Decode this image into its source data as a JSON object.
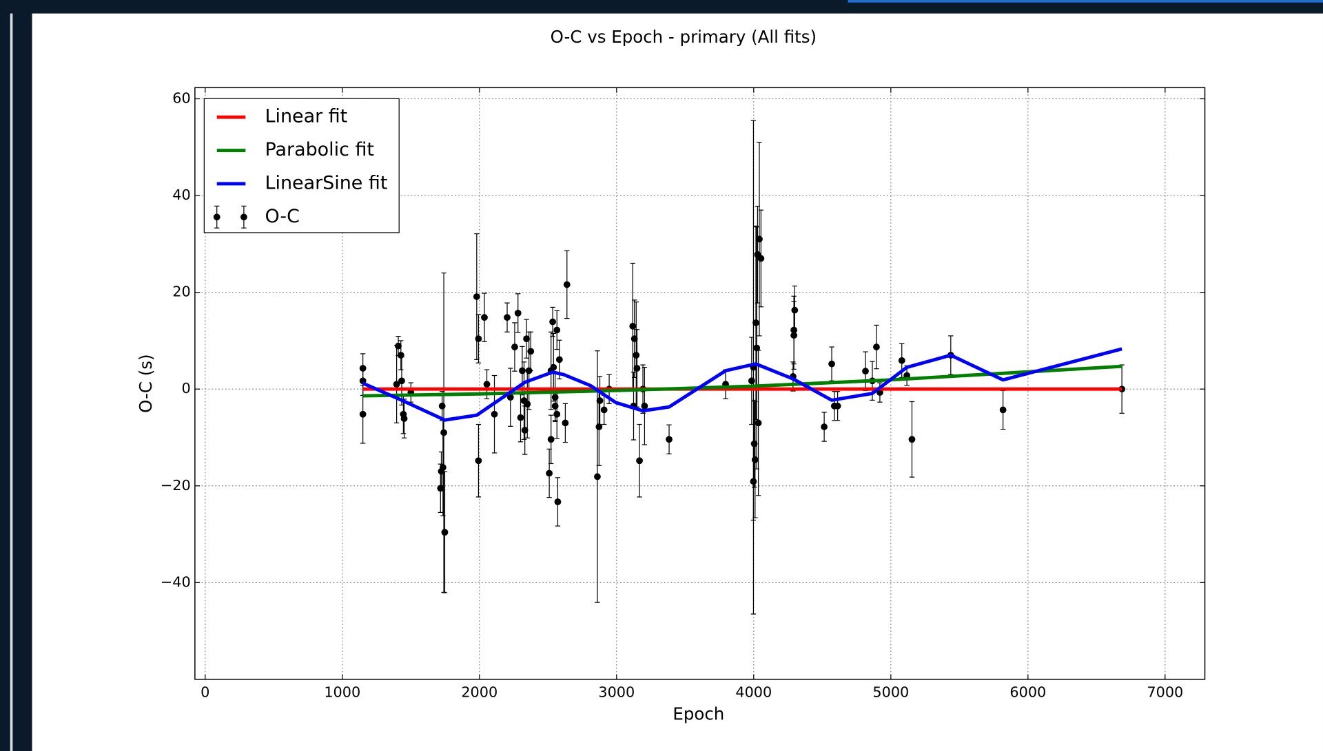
{
  "chart_data": {
    "type": "scatter",
    "title": "O-C vs Epoch - primary (All fits)",
    "x_label": "Epoch",
    "y_label": "O-C (s)",
    "xlim": [
      -75,
      7290
    ],
    "ylim": [
      -60,
      62.3
    ],
    "xticks": [
      0,
      1000,
      2000,
      3000,
      4000,
      5000,
      6000,
      7000
    ],
    "yticks": [
      {
        "value": -40,
        "label": "−40"
      },
      {
        "value": -20,
        "label": "−20"
      },
      0,
      20,
      40,
      60
    ],
    "grid": true,
    "legend": "upper left",
    "series": [
      {
        "name": "Linear fit",
        "style": "line",
        "color": "#ff0000",
        "x": [
          1150,
          6685
        ],
        "values": [
          0,
          0
        ]
      },
      {
        "name": "Parabolic fit",
        "style": "line",
        "color": "#008000",
        "x": [
          1150,
          2000,
          3000,
          4000,
          5000,
          6685
        ],
        "values": [
          -1.4,
          -1.0,
          -0.3,
          0.6,
          1.9,
          4.7
        ]
      },
      {
        "name": "LinearSine fit",
        "style": "line",
        "color": "#0000ff",
        "x": [
          1150,
          1433,
          1747,
          1980,
          2331,
          2534,
          2614,
          2811,
          2995,
          3192,
          3383,
          3795,
          4016,
          4287,
          4569,
          4865,
          5117,
          5437,
          5818,
          6685
        ],
        "values": [
          1.2,
          -2.3,
          -6.4,
          -5.4,
          1.4,
          3.5,
          3.0,
          0.7,
          -2.8,
          -4.5,
          -3.7,
          3.8,
          5.2,
          2.1,
          -2.3,
          -0.9,
          4.5,
          7.0,
          1.9,
          8.3
        ]
      },
      {
        "name": "O-C",
        "style": "errorbar",
        "color": "#000000",
        "x": [
          1150,
          1150,
          1150,
          1408,
          1427,
          1396,
          1433,
          1445,
          1451,
          1500,
          1728,
          1722,
          1734,
          1716,
          1747,
          1740,
          1980,
          1993,
          1993,
          2036,
          2054,
          2109,
          2202,
          2226,
          2257,
          2281,
          2300,
          2312,
          2325,
          2331,
          2343,
          2349,
          2361,
          2374,
          2509,
          2522,
          2522,
          2534,
          2540,
          2552,
          2552,
          2565,
          2565,
          2571,
          2583,
          2626,
          2638,
          2860,
          2872,
          2878,
          2909,
          2946,
          3118,
          3130,
          3143,
          3124,
          3149,
          3167,
          3192,
          3204,
          3383,
          3795,
          3985,
          3998,
          4004,
          3998,
          4010,
          4016,
          4022,
          4028,
          4034,
          4041,
          4053,
          4287,
          4293,
          4293,
          4299,
          4514,
          4569,
          4588,
          4612,
          4815,
          4865,
          4895,
          4920,
          5080,
          5117,
          5154,
          5437,
          5818,
          6685
        ],
        "values": [
          4.3,
          1.7,
          -5.2,
          8.9,
          7.0,
          1.0,
          1.7,
          -5.2,
          -6.1,
          -0.7,
          -3.5,
          -17,
          -16.2,
          -20.5,
          -29.6,
          -9,
          19.1,
          10.4,
          -14.8,
          14.8,
          1.0,
          -5.2,
          14.8,
          -1.7,
          8.7,
          15.7,
          -5.9,
          3.8,
          -2.4,
          -8.5,
          10.4,
          -3.1,
          3.8,
          7.8,
          -17.4,
          -10.4,
          3.8,
          13.9,
          4.5,
          -1.7,
          -3.5,
          -5.2,
          12.2,
          -23.3,
          6.1,
          -7.0,
          21.6,
          -18.1,
          -7.8,
          -2.4,
          -4.3,
          0,
          13.0,
          10.4,
          7.0,
          -3.5,
          4.3,
          -14.8,
          0,
          -3.5,
          -10.4,
          1.0,
          1.7,
          -19.1,
          -11.3,
          4.5,
          -14.6,
          13.7,
          8.5,
          27.8,
          -7,
          31,
          27,
          2.6,
          12.2,
          11.1,
          16.3,
          -7.8,
          5.2,
          -3.5,
          -3.5,
          3.7,
          1.7,
          8.7,
          -0.7,
          5.9,
          2.8,
          -10.4,
          7.0,
          -4.3,
          0
        ],
        "errors": [
          3,
          3,
          6,
          2,
          3,
          8,
          5,
          4,
          4,
          2,
          3,
          4,
          10,
          5,
          12.5,
          33,
          13,
          5,
          7.5,
          5,
          3,
          8,
          3,
          6,
          5,
          4,
          5,
          5,
          8,
          5,
          4,
          7,
          8,
          4,
          5,
          5,
          8,
          3,
          7,
          5,
          3,
          5,
          4,
          5,
          4,
          4,
          7,
          26,
          8,
          5,
          3,
          3,
          13,
          8,
          11,
          7,
          8,
          7.5,
          5,
          8,
          3,
          3,
          9,
          8,
          9,
          51,
          12,
          20,
          25,
          10,
          15,
          20,
          10,
          3,
          7,
          7,
          5,
          3,
          3.5,
          3,
          3,
          4,
          4,
          4.5,
          2,
          3.5,
          2,
          7.8,
          4,
          4,
          5
        ]
      }
    ]
  }
}
